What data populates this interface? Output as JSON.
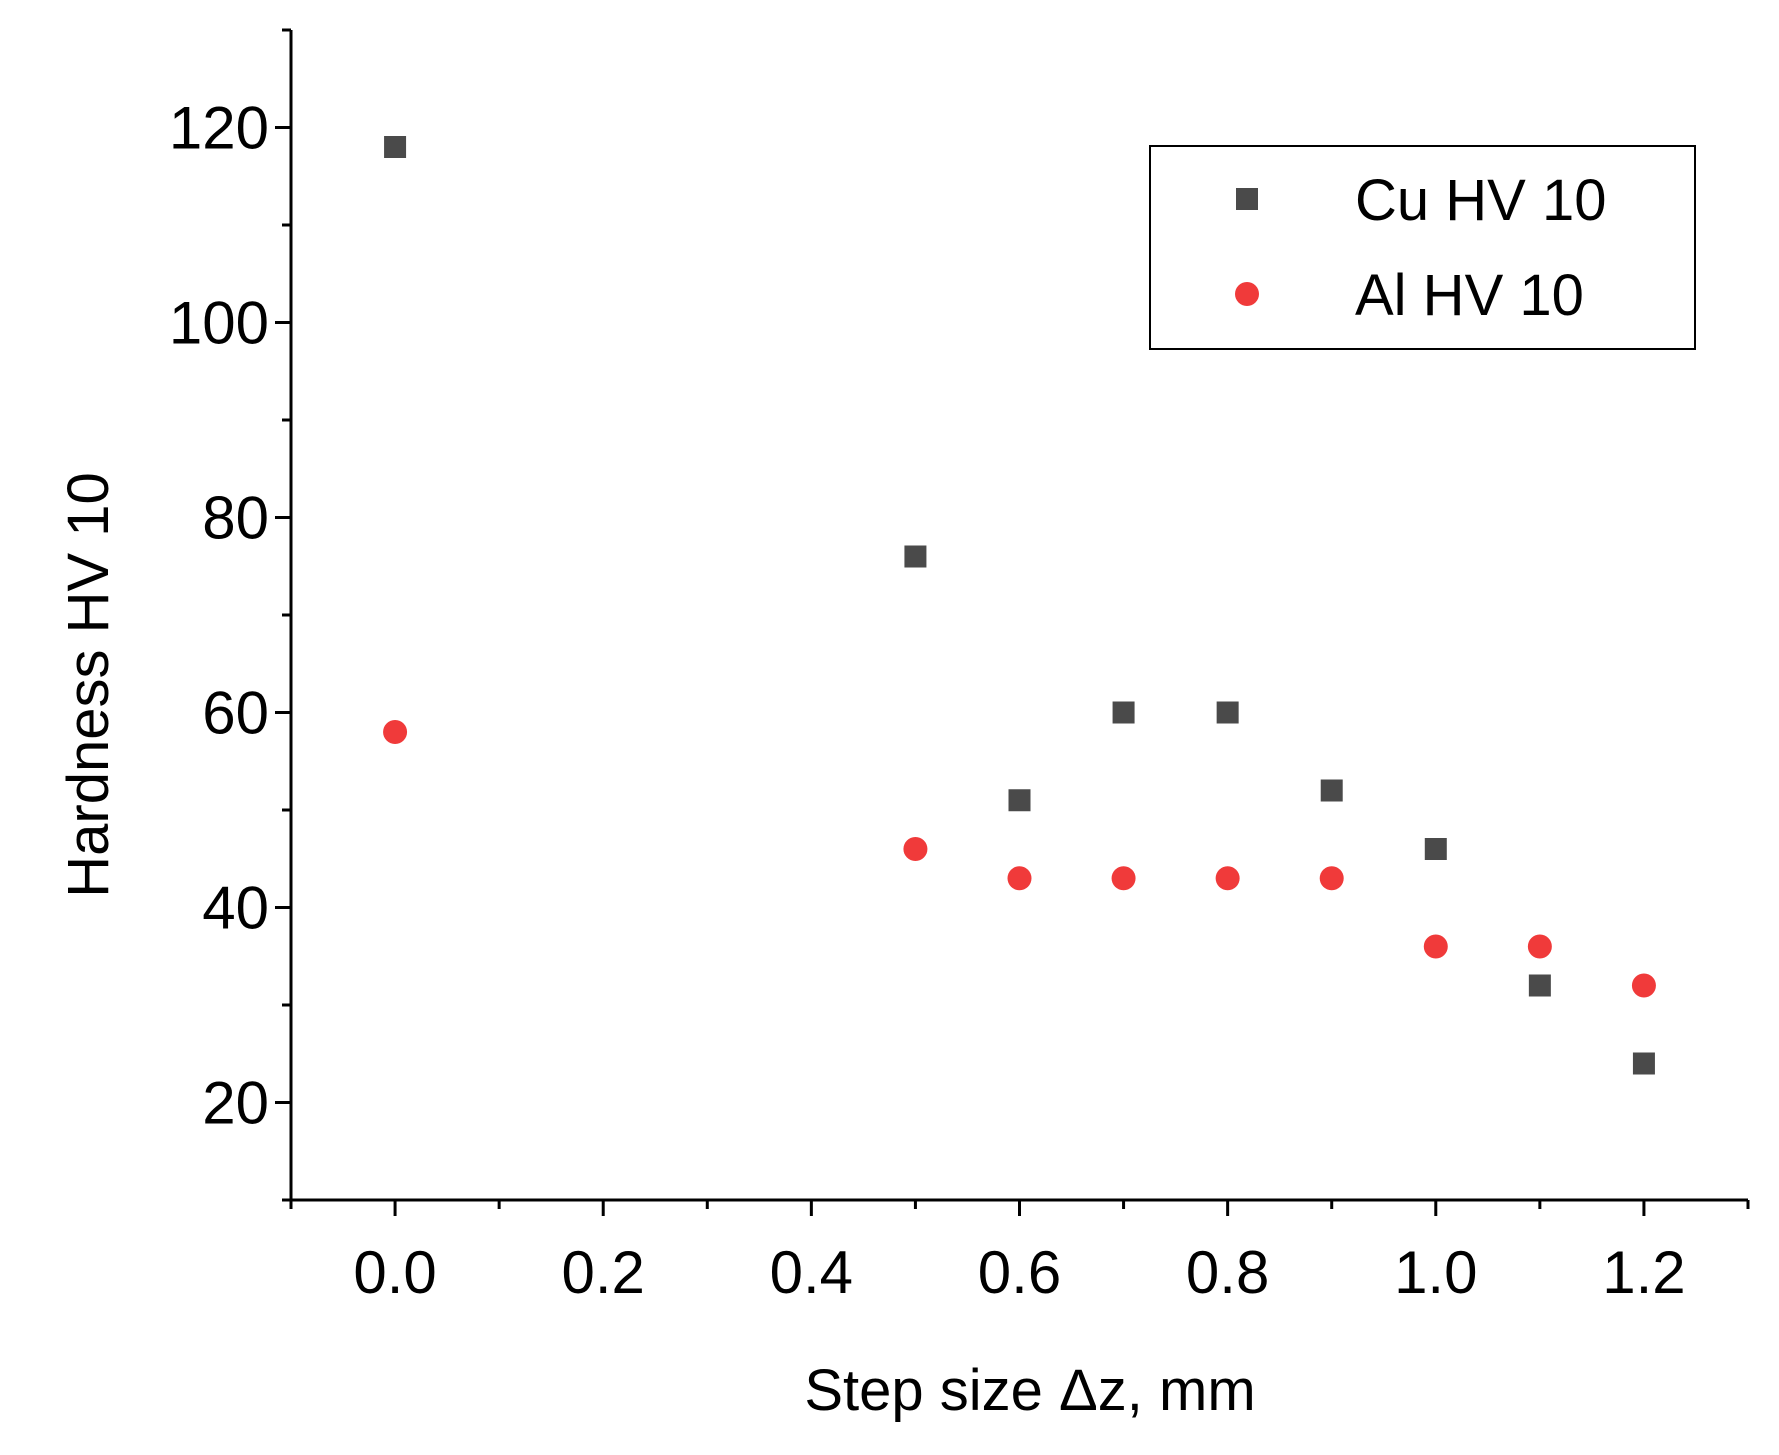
{
  "chart_data": {
    "type": "scatter",
    "xlabel": "Step size Δz, mm",
    "ylabel": "Hardness HV 10",
    "xlim": [
      -0.1,
      1.3
    ],
    "ylim": [
      10,
      130
    ],
    "x_ticks": [
      0.0,
      0.2,
      0.4,
      0.6,
      0.8,
      1.0,
      1.2
    ],
    "x_tick_labels": [
      "0.0",
      "0.2",
      "0.4",
      "0.6",
      "0.8",
      "1.0",
      "1.2"
    ],
    "y_ticks": [
      20,
      40,
      60,
      80,
      100,
      120
    ],
    "y_tick_labels": [
      "20",
      "40",
      "60",
      "80",
      "100",
      "120"
    ],
    "grid": false,
    "legend_position": "top-right",
    "series": [
      {
        "name": "Cu HV 10",
        "marker": "square",
        "color": "#4a4a4a",
        "points": [
          {
            "x": 0.0,
            "y": 118
          },
          {
            "x": 0.5,
            "y": 76
          },
          {
            "x": 0.6,
            "y": 51
          },
          {
            "x": 0.7,
            "y": 60
          },
          {
            "x": 0.8,
            "y": 60
          },
          {
            "x": 0.9,
            "y": 52
          },
          {
            "x": 1.0,
            "y": 46
          },
          {
            "x": 1.1,
            "y": 32
          },
          {
            "x": 1.2,
            "y": 24
          }
        ]
      },
      {
        "name": "Al HV 10",
        "marker": "circle",
        "color": "#f03a3a",
        "points": [
          {
            "x": 0.0,
            "y": 58
          },
          {
            "x": 0.5,
            "y": 46
          },
          {
            "x": 0.6,
            "y": 43
          },
          {
            "x": 0.7,
            "y": 43
          },
          {
            "x": 0.8,
            "y": 43
          },
          {
            "x": 0.9,
            "y": 43
          },
          {
            "x": 1.0,
            "y": 36
          },
          {
            "x": 1.1,
            "y": 36
          },
          {
            "x": 1.2,
            "y": 32
          }
        ]
      }
    ]
  }
}
